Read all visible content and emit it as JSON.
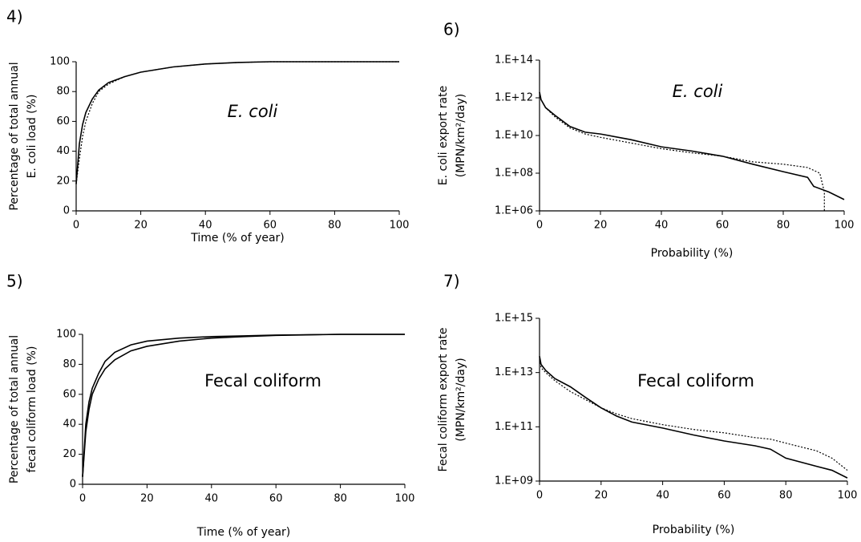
{
  "chart_data": [
    {
      "type": "line",
      "panel": "4)",
      "annotation": "E. coli",
      "annotation_italic": true,
      "ylabel": [
        "Percentage of total annual",
        "E. coli load (%)"
      ],
      "xlabel": "Time (% of year)",
      "x": [
        0,
        1,
        2,
        3,
        5,
        7,
        10,
        15,
        20,
        30,
        40,
        50,
        60,
        80,
        100
      ],
      "series": [
        {
          "color": "#000000",
          "dash": "solid",
          "values": [
            18,
            45,
            58,
            66,
            75,
            81,
            86,
            90,
            93,
            96.5,
            98.5,
            99.5,
            100,
            100,
            100
          ]
        },
        {
          "color": "#000000",
          "dash": "dotted",
          "values": [
            18,
            35,
            50,
            60,
            72,
            80,
            85,
            90,
            93,
            96.5,
            98.5,
            99.5,
            100,
            100,
            100
          ]
        }
      ],
      "xlim": [
        0,
        100
      ],
      "xticks": [
        0,
        20,
        40,
        60,
        80,
        100
      ],
      "ylim": [
        0,
        100
      ],
      "yticks": [
        0,
        20,
        40,
        60,
        80,
        100
      ],
      "log_y": false
    },
    {
      "type": "line",
      "panel": "5)",
      "annotation": "Fecal coliform",
      "annotation_italic": false,
      "ylabel": [
        "Percentage of total annual",
        "fecal coliform load (%)"
      ],
      "xlabel": "Time (% of year)",
      "x": [
        0,
        1,
        2,
        3,
        5,
        7,
        10,
        15,
        20,
        30,
        40,
        50,
        60,
        80,
        100
      ],
      "series": [
        {
          "color": "#000000",
          "dash": "solid",
          "values": [
            5,
            40,
            55,
            64,
            74,
            82,
            88,
            93,
            95.5,
            97.5,
            98.5,
            99,
            99.5,
            100,
            100
          ]
        },
        {
          "color": "#000000",
          "dash": "solid",
          "values": [
            5,
            35,
            50,
            60,
            70,
            77,
            83,
            89,
            92,
            95.5,
            97.5,
            98.5,
            99.3,
            100,
            100
          ]
        }
      ],
      "xlim": [
        0,
        100
      ],
      "xticks": [
        0,
        20,
        40,
        60,
        80,
        100
      ],
      "ylim": [
        0,
        100
      ],
      "yticks": [
        0,
        20,
        40,
        60,
        80,
        100
      ],
      "log_y": false
    },
    {
      "type": "line",
      "panel": "6)",
      "annotation": "E. coli",
      "annotation_italic": true,
      "ylabel": [
        "E. coli export rate",
        "(MPN/km²/day)"
      ],
      "xlabel": "Probability (%)",
      "series": [
        {
          "color": "#000000",
          "dash": "solid",
          "x": [
            0,
            0.5,
            2,
            5,
            10,
            15,
            20,
            30,
            40,
            50,
            60,
            70,
            80,
            88,
            90,
            95,
            100
          ],
          "values": [
            2000000000000.0,
            800000000000.0,
            300000000000.0,
            120000000000.0,
            30000000000.0,
            15000000000.0,
            12000000000.0,
            6000000000.0,
            2500000000.0,
            1500000000.0,
            800000000.0,
            300000000.0,
            120000000.0,
            60000000.0,
            20000000.0,
            10000000.0,
            4000000.0
          ]
        },
        {
          "color": "#000000",
          "dash": "dotted",
          "x": [
            0,
            0.5,
            2,
            5,
            10,
            15,
            20,
            30,
            40,
            50,
            60,
            70,
            80,
            88,
            92,
            93.5,
            93.5
          ],
          "values": [
            2000000000000.0,
            800000000000.0,
            300000000000.0,
            100000000000.0,
            25000000000.0,
            12000000000.0,
            8000000000.0,
            4000000000.0,
            2000000000.0,
            1200000000.0,
            800000000.0,
            400000000.0,
            300000000.0,
            200000000.0,
            100000000.0,
            10000000.0,
            1000000.0
          ]
        }
      ],
      "xlim": [
        0,
        100
      ],
      "xticks": [
        0,
        20,
        40,
        60,
        80,
        100
      ],
      "ylim": [
        1000000.0,
        100000000000000.0
      ],
      "yticks": [
        {
          "value": 1000000.0,
          "label": "1.E+06"
        },
        {
          "value": 100000000.0,
          "label": "1.E+08"
        },
        {
          "value": 10000000000.0,
          "label": "1.E+10"
        },
        {
          "value": 1000000000000.0,
          "label": "1.E+12"
        },
        {
          "value": 100000000000000.0,
          "label": "1.E+14"
        }
      ],
      "log_y": true
    },
    {
      "type": "line",
      "panel": "7)",
      "annotation": "Fecal coliform",
      "annotation_italic": false,
      "ylabel": [
        "Fecal coliform  export rate",
        "(MPN/km²/day)"
      ],
      "xlabel": "Probability (%)",
      "series": [
        {
          "color": "#000000",
          "dash": "solid",
          "x": [
            0,
            0.5,
            2,
            5,
            10,
            15,
            20,
            25,
            30,
            40,
            50,
            60,
            70,
            75,
            80,
            90,
            95,
            100
          ],
          "values": [
            40000000000000.0,
            20000000000000.0,
            12000000000000.0,
            6000000000000.0,
            3000000000000.0,
            1200000000000.0,
            500000000000.0,
            250000000000.0,
            150000000000.0,
            90000000000.0,
            50000000000.0,
            30000000000.0,
            20000000000.0,
            15000000000.0,
            7000000000.0,
            3500000000.0,
            2500000000.0,
            1300000000.0
          ]
        },
        {
          "color": "#000000",
          "dash": "dotted",
          "x": [
            0,
            0.5,
            2,
            5,
            10,
            15,
            20,
            25,
            30,
            40,
            50,
            60,
            70,
            75,
            80,
            90,
            95,
            100
          ],
          "values": [
            40000000000000.0,
            15000000000000.0,
            10000000000000.0,
            5000000000000.0,
            2000000000000.0,
            1000000000000.0,
            500000000000.0,
            300000000000.0,
            200000000000.0,
            120000000000.0,
            80000000000.0,
            60000000000.0,
            40000000000.0,
            35000000000.0,
            25000000000.0,
            13000000000.0,
            7000000000.0,
            2500000000.0
          ]
        }
      ],
      "xlim": [
        0,
        100
      ],
      "xticks": [
        0,
        20,
        40,
        60,
        80,
        100
      ],
      "ylim": [
        1000000000.0,
        1000000000000000.0
      ],
      "yticks": [
        {
          "value": 1000000000.0,
          "label": "1.E+09"
        },
        {
          "value": 100000000000.0,
          "label": "1.E+11"
        },
        {
          "value": 10000000000000.0,
          "label": "1.E+13"
        },
        {
          "value": 1000000000000000.0,
          "label": "1.E+15"
        }
      ],
      "log_y": true
    }
  ]
}
